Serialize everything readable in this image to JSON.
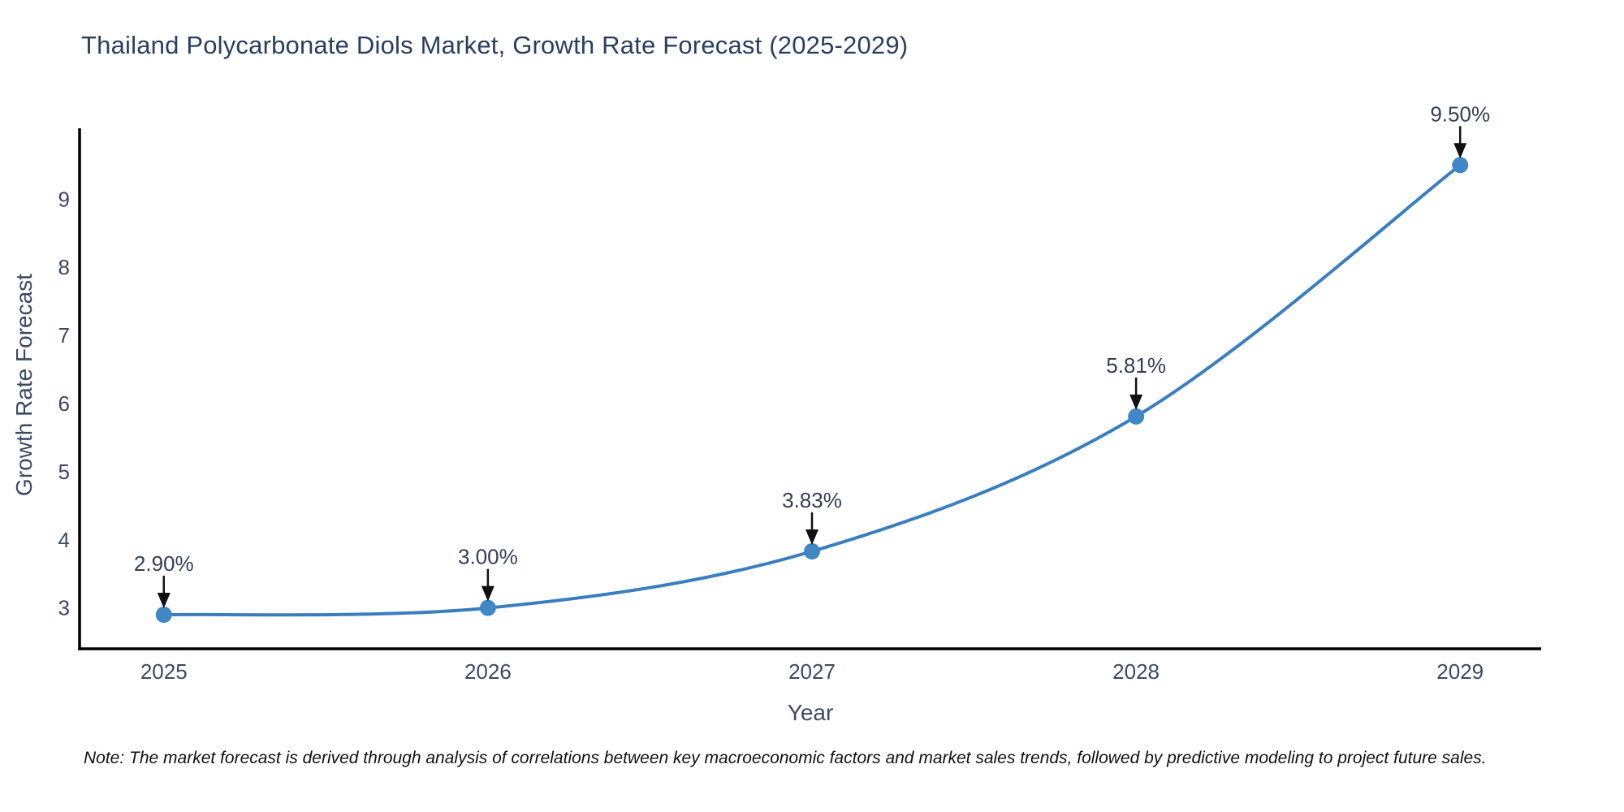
{
  "page": {
    "background": "#ffffff"
  },
  "chart_data": {
    "type": "line",
    "title": "Thailand Polycarbonate Diols Market, Growth Rate Forecast (2025-2029)",
    "xlabel": "Year",
    "ylabel": "Growth Rate Forecast",
    "x": [
      2025,
      2026,
      2027,
      2028,
      2029
    ],
    "values": [
      2.9,
      3.0,
      3.83,
      5.81,
      9.5
    ],
    "point_labels": [
      "2.90%",
      "3.00%",
      "3.83%",
      "5.81%",
      "9.50%"
    ],
    "yticks": [
      3,
      4,
      5,
      6,
      7,
      8,
      9
    ],
    "xlim": [
      2024.74,
      2029.25
    ],
    "ylim": [
      2.4,
      10.04
    ],
    "grid": false,
    "legend": false,
    "smooth": true,
    "colors": {
      "line": "#3a7ebf",
      "marker": "#4187c6",
      "axis": "#000000",
      "tick_text": "#3b4a63",
      "axis_title_text": "#3b4a63",
      "title_text": "#2a3f5f",
      "annotation_text": "#333f55",
      "annotation_arrow": "#111111",
      "note_text": "#111111"
    },
    "note": "Note: The market forecast is derived through analysis of correlations between key macroeconomic factors and market sales trends, followed by predictive modeling to project future sales."
  }
}
